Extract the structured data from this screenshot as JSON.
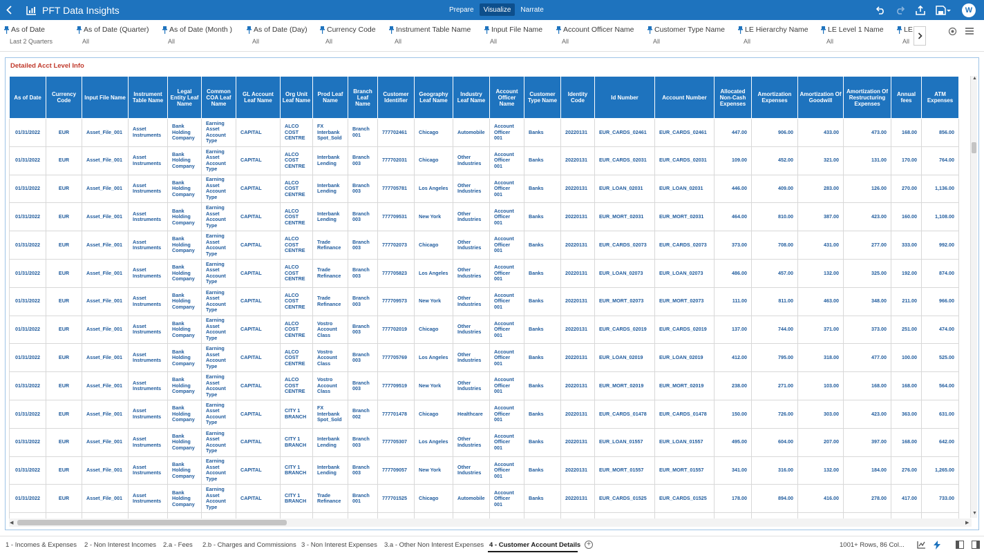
{
  "app": {
    "title": "PFT Data Insights",
    "avatar_initial": "W",
    "modes": [
      "Prepare",
      "Visualize",
      "Narrate"
    ],
    "active_mode": "Visualize"
  },
  "filters": [
    {
      "label": "As of Date",
      "value": "Last 2 Quarters"
    },
    {
      "label": "As of Date (Quarter)",
      "value": "All"
    },
    {
      "label": "As of Date (Month )",
      "value": "All"
    },
    {
      "label": "As of Date (Day)",
      "value": "All"
    },
    {
      "label": "Currency Code",
      "value": "All"
    },
    {
      "label": "Instrument Table Name",
      "value": "All"
    },
    {
      "label": "Input File Name",
      "value": "All"
    },
    {
      "label": "Account Officer Name",
      "value": "All"
    },
    {
      "label": "Customer Type Name",
      "value": "All"
    },
    {
      "label": "LE Hierarchy Name",
      "value": "All"
    },
    {
      "label": "LE Level 1 Name",
      "value": "All"
    },
    {
      "label": "LE",
      "value": "All"
    }
  ],
  "panel": {
    "title": "Detailed Acct Level Info"
  },
  "table": {
    "columns": [
      "As of Date",
      "Currency Code",
      "Input File Name",
      "Instrument Table Name",
      "Legal Entity Leaf Name",
      "Common COA Leaf Name",
      "GL Account Leaf Name",
      "Org Unit Leaf Name",
      "Prod Leaf Name",
      "Branch Leaf Name",
      "Customer Identifier",
      "Geography Leaf Name",
      "Industry Leaf Name",
      "Account Officer Name",
      "Customer Type Name",
      "Identity Code",
      "Id Number",
      "Account Number",
      "Allocated Non-Cash Expenses",
      "Amortization Expenses",
      "Amortization Of Goodwill",
      "Amortization Of Restructuring Expenses",
      "Annual fees",
      "ATM Expenses"
    ],
    "rows": [
      [
        "01/31/2022",
        "EUR",
        "Asset_File_001",
        "Asset Instruments",
        "Bank Holding Company",
        "Earning Asset Account Type",
        "CAPITAL",
        "ALCO COST CENTRE",
        "FX Interbank Spot_Sold",
        "Branch 001",
        "777702461",
        "Chicago",
        "Automobile",
        "Account Officer 001",
        "Banks",
        "20220131",
        "EUR_CARDS_02461",
        "EUR_CARDS_02461",
        "447.00",
        "906.00",
        "433.00",
        "473.00",
        "168.00",
        "856.00"
      ],
      [
        "01/31/2022",
        "EUR",
        "Asset_File_001",
        "Asset Instruments",
        "Bank Holding Company",
        "Earning Asset Account Type",
        "CAPITAL",
        "ALCO COST CENTRE",
        "Interbank Lending",
        "Branch 003",
        "777702031",
        "Chicago",
        "Other Industries",
        "Account Officer 001",
        "Banks",
        "20220131",
        "EUR_CARDS_02031",
        "EUR_CARDS_02031",
        "109.00",
        "452.00",
        "321.00",
        "131.00",
        "170.00",
        "764.00"
      ],
      [
        "01/31/2022",
        "EUR",
        "Asset_File_001",
        "Asset Instruments",
        "Bank Holding Company",
        "Earning Asset Account Type",
        "CAPITAL",
        "ALCO COST CENTRE",
        "Interbank Lending",
        "Branch 003",
        "777705781",
        "Los Angeles",
        "Other Industries",
        "Account Officer 001",
        "Banks",
        "20220131",
        "EUR_LOAN_02031",
        "EUR_LOAN_02031",
        "446.00",
        "409.00",
        "283.00",
        "126.00",
        "270.00",
        "1,136.00"
      ],
      [
        "01/31/2022",
        "EUR",
        "Asset_File_001",
        "Asset Instruments",
        "Bank Holding Company",
        "Earning Asset Account Type",
        "CAPITAL",
        "ALCO COST CENTRE",
        "Interbank Lending",
        "Branch 003",
        "777709531",
        "New York",
        "Other Industries",
        "Account Officer 001",
        "Banks",
        "20220131",
        "EUR_MORT_02031",
        "EUR_MORT_02031",
        "464.00",
        "810.00",
        "387.00",
        "423.00",
        "160.00",
        "1,108.00"
      ],
      [
        "01/31/2022",
        "EUR",
        "Asset_File_001",
        "Asset Instruments",
        "Bank Holding Company",
        "Earning Asset Account Type",
        "CAPITAL",
        "ALCO COST CENTRE",
        "Trade Refinance",
        "Branch 003",
        "777702073",
        "Chicago",
        "Other Industries",
        "Account Officer 001",
        "Banks",
        "20220131",
        "EUR_CARDS_02073",
        "EUR_CARDS_02073",
        "373.00",
        "708.00",
        "431.00",
        "277.00",
        "333.00",
        "992.00"
      ],
      [
        "01/31/2022",
        "EUR",
        "Asset_File_001",
        "Asset Instruments",
        "Bank Holding Company",
        "Earning Asset Account Type",
        "CAPITAL",
        "ALCO COST CENTRE",
        "Trade Refinance",
        "Branch 003",
        "777705823",
        "Los Angeles",
        "Other Industries",
        "Account Officer 001",
        "Banks",
        "20220131",
        "EUR_LOAN_02073",
        "EUR_LOAN_02073",
        "486.00",
        "457.00",
        "132.00",
        "325.00",
        "192.00",
        "874.00"
      ],
      [
        "01/31/2022",
        "EUR",
        "Asset_File_001",
        "Asset Instruments",
        "Bank Holding Company",
        "Earning Asset Account Type",
        "CAPITAL",
        "ALCO COST CENTRE",
        "Trade Refinance",
        "Branch 003",
        "777709573",
        "New York",
        "Other Industries",
        "Account Officer 001",
        "Banks",
        "20220131",
        "EUR_MORT_02073",
        "EUR_MORT_02073",
        "111.00",
        "811.00",
        "463.00",
        "348.00",
        "211.00",
        "966.00"
      ],
      [
        "01/31/2022",
        "EUR",
        "Asset_File_001",
        "Asset Instruments",
        "Bank Holding Company",
        "Earning Asset Account Type",
        "CAPITAL",
        "ALCO COST CENTRE",
        "Vostro Account Class",
        "Branch 003",
        "777702019",
        "Chicago",
        "Other Industries",
        "Account Officer 001",
        "Banks",
        "20220131",
        "EUR_CARDS_02019",
        "EUR_CARDS_02019",
        "137.00",
        "744.00",
        "371.00",
        "373.00",
        "251.00",
        "474.00"
      ],
      [
        "01/31/2022",
        "EUR",
        "Asset_File_001",
        "Asset Instruments",
        "Bank Holding Company",
        "Earning Asset Account Type",
        "CAPITAL",
        "ALCO COST CENTRE",
        "Vostro Account Class",
        "Branch 003",
        "777705769",
        "Los Angeles",
        "Other Industries",
        "Account Officer 001",
        "Banks",
        "20220131",
        "EUR_LOAN_02019",
        "EUR_LOAN_02019",
        "412.00",
        "795.00",
        "318.00",
        "477.00",
        "100.00",
        "525.00"
      ],
      [
        "01/31/2022",
        "EUR",
        "Asset_File_001",
        "Asset Instruments",
        "Bank Holding Company",
        "Earning Asset Account Type",
        "CAPITAL",
        "ALCO COST CENTRE",
        "Vostro Account Class",
        "Branch 003",
        "777709519",
        "New York",
        "Other Industries",
        "Account Officer 001",
        "Banks",
        "20220131",
        "EUR_MORT_02019",
        "EUR_MORT_02019",
        "238.00",
        "271.00",
        "103.00",
        "168.00",
        "168.00",
        "564.00"
      ],
      [
        "01/31/2022",
        "EUR",
        "Asset_File_001",
        "Asset Instruments",
        "Bank Holding Company",
        "Earning Asset Account Type",
        "CAPITAL",
        "CITY 1 BRANCH",
        "FX Interbank Spot_Sold",
        "Branch 002",
        "777701478",
        "Chicago",
        "Healthcare",
        "Account Officer 001",
        "Banks",
        "20220131",
        "EUR_CARDS_01478",
        "EUR_CARDS_01478",
        "150.00",
        "726.00",
        "303.00",
        "423.00",
        "363.00",
        "631.00"
      ],
      [
        "01/31/2022",
        "EUR",
        "Asset_File_001",
        "Asset Instruments",
        "Bank Holding Company",
        "Earning Asset Account Type",
        "CAPITAL",
        "CITY 1 BRANCH",
        "Interbank Lending",
        "Branch 003",
        "777705307",
        "Los Angeles",
        "Other Industries",
        "Account Officer 001",
        "Banks",
        "20220131",
        "EUR_LOAN_01557",
        "EUR_LOAN_01557",
        "495.00",
        "604.00",
        "207.00",
        "397.00",
        "168.00",
        "642.00"
      ],
      [
        "01/31/2022",
        "EUR",
        "Asset_File_001",
        "Asset Instruments",
        "Bank Holding Company",
        "Earning Asset Account Type",
        "CAPITAL",
        "CITY 1 BRANCH",
        "Interbank Lending",
        "Branch 003",
        "777709057",
        "New York",
        "Other Industries",
        "Account Officer 001",
        "Banks",
        "20220131",
        "EUR_MORT_01557",
        "EUR_MORT_01557",
        "341.00",
        "316.00",
        "132.00",
        "184.00",
        "276.00",
        "1,265.00"
      ],
      [
        "01/31/2022",
        "EUR",
        "Asset_File_001",
        "Asset Instruments",
        "Bank Holding Company",
        "Earning Asset Account Type",
        "CAPITAL",
        "CITY 1 BRANCH",
        "Trade Refinance",
        "Branch 001",
        "777701525",
        "Chicago",
        "Automobile",
        "Account Officer 001",
        "Banks",
        "20220131",
        "EUR_CARDS_01525",
        "EUR_CARDS_01525",
        "178.00",
        "894.00",
        "416.00",
        "278.00",
        "417.00",
        "733.00"
      ],
      [
        "",
        "",
        "",
        "",
        "",
        "Earning",
        "",
        "",
        "",
        "",
        "",
        "",
        "",
        "",
        "",
        "",
        "",
        "",
        "",
        "",
        "",
        "",
        "",
        ""
      ]
    ]
  },
  "tabs": [
    "1 - Incomes & Expenses",
    "2 - Non Interest Incomes",
    "2.a - Fees",
    "2.b - Charges and Commissions",
    "3 - Non Interest Expenses",
    "3.a - Other Non Interest Expenses",
    "4 - Customer Account Details"
  ],
  "active_tab": "4 - Customer Account Details",
  "status": {
    "row_count": "1001+ Rows, 86 Col..."
  },
  "colors": {
    "brand": "#1e73be",
    "title_red": "#c0392b",
    "cell_text": "#1e5a9c"
  }
}
